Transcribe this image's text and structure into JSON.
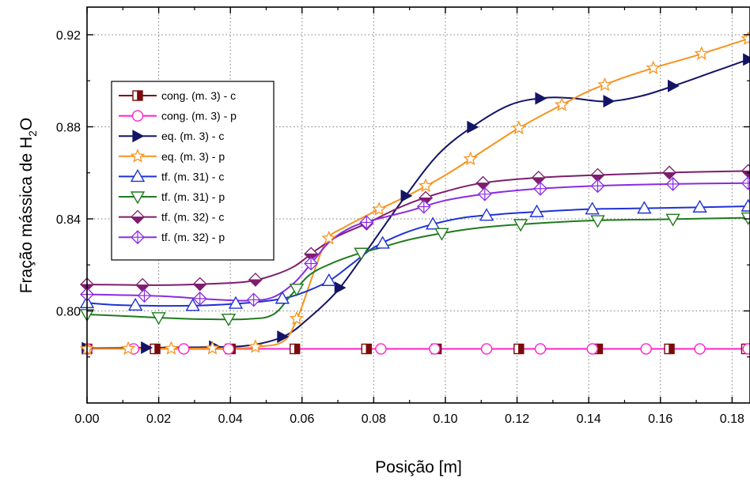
{
  "chart_data": {
    "type": "line",
    "title": "",
    "xlabel": "Posição [m]",
    "ylabel": {
      "prefix": "Fração mássica de H",
      "sub": "2",
      "suffix": "O"
    },
    "xlim": [
      0,
      0.185
    ],
    "ylim": [
      0.76,
      0.932
    ],
    "xticks": [
      0.0,
      0.02,
      0.04,
      0.06,
      0.08,
      0.1,
      0.12,
      0.14,
      0.16,
      0.18
    ],
    "xtick_labels": [
      "0.00",
      "0.02",
      "0.04",
      "0.06",
      "0.08",
      "0.10",
      "0.12",
      "0.14",
      "0.16",
      "0.18"
    ],
    "yticks": [
      0.8,
      0.84,
      0.88,
      0.92
    ],
    "ytick_labels": [
      "0.80",
      "0.84",
      "0.88",
      "0.92"
    ],
    "grid": true,
    "legend_position": "left",
    "series": [
      {
        "name": "cong. (m. 3) - c",
        "color": "#7b0a0a",
        "marker": "half-square",
        "x": [
          0,
          0.02,
          0.04,
          0.06,
          0.08,
          0.1,
          0.12,
          0.14,
          0.16,
          0.185
        ],
        "y": [
          0.7835,
          0.7835,
          0.7835,
          0.7835,
          0.7835,
          0.7835,
          0.7835,
          0.7835,
          0.7835,
          0.7835
        ],
        "markers_x": [
          0.0,
          0.019,
          0.04,
          0.058,
          0.078,
          0.0975,
          0.1205,
          0.1425,
          0.1625,
          0.184
        ]
      },
      {
        "name": "cong. (m. 3) - p",
        "color": "#ff22cc",
        "marker": "circle",
        "x": [
          0,
          0.02,
          0.04,
          0.06,
          0.08,
          0.1,
          0.12,
          0.14,
          0.16,
          0.185
        ],
        "y": [
          0.7835,
          0.7835,
          0.7835,
          0.7835,
          0.7835,
          0.7835,
          0.7835,
          0.7835,
          0.7835,
          0.7835
        ],
        "markers_x": [
          0.0,
          0.013,
          0.027,
          0.0395,
          0.082,
          0.097,
          0.1115,
          0.1265,
          0.141,
          0.156,
          0.171,
          0.1845
        ]
      },
      {
        "name": "eq. (m. 3) - c",
        "color": "#141466",
        "marker": "triangle-right",
        "x": [
          0,
          0.03,
          0.045,
          0.055,
          0.062,
          0.07,
          0.078,
          0.088,
          0.098,
          0.108,
          0.118,
          0.127,
          0.135,
          0.145,
          0.155,
          0.165,
          0.175,
          0.185
        ],
        "y": [
          0.7838,
          0.7842,
          0.785,
          0.789,
          0.797,
          0.809,
          0.826,
          0.848,
          0.868,
          0.8805,
          0.8895,
          0.8925,
          0.8925,
          0.891,
          0.8935,
          0.8985,
          0.904,
          0.9095
        ],
        "markers_x": [
          0.0,
          0.0165,
          0.0355,
          0.0545,
          0.0705,
          0.089,
          0.1075,
          0.1265,
          0.1455,
          0.1635,
          0.1845
        ]
      },
      {
        "name": "eq. (m. 3) - p",
        "color": "#f7931e",
        "marker": "star",
        "x": [
          0,
          0.04,
          0.048,
          0.055,
          0.059,
          0.063,
          0.067,
          0.072,
          0.08,
          0.09,
          0.1,
          0.11,
          0.12,
          0.13,
          0.14,
          0.15,
          0.16,
          0.17,
          0.185
        ],
        "y": [
          0.7835,
          0.7838,
          0.7845,
          0.787,
          0.798,
          0.8155,
          0.831,
          0.8365,
          0.843,
          0.8505,
          0.859,
          0.869,
          0.879,
          0.8875,
          0.8955,
          0.9015,
          0.9065,
          0.911,
          0.9185
        ],
        "markers_x": [
          0.0,
          0.0115,
          0.0235,
          0.035,
          0.047,
          0.0585,
          0.0675,
          0.0815,
          0.0945,
          0.107,
          0.1205,
          0.1325,
          0.1445,
          0.158,
          0.1715,
          0.1845
        ]
      },
      {
        "name": "tf. (m. 31) - c",
        "color": "#1f32d6",
        "marker": "triangle-up",
        "x": [
          0,
          0.01,
          0.03,
          0.045,
          0.055,
          0.062,
          0.068,
          0.074,
          0.08,
          0.088,
          0.096,
          0.105,
          0.115,
          0.125,
          0.14,
          0.16,
          0.185
        ],
        "y": [
          0.8035,
          0.8025,
          0.8023,
          0.8035,
          0.8055,
          0.809,
          0.8135,
          0.8205,
          0.8275,
          0.8335,
          0.8375,
          0.8405,
          0.842,
          0.843,
          0.8442,
          0.8447,
          0.8455
        ],
        "markers_x": [
          0.0,
          0.0135,
          0.0295,
          0.0415,
          0.0545,
          0.0675,
          0.0825,
          0.0965,
          0.1115,
          0.1255,
          0.141,
          0.1555,
          0.171,
          0.1845
        ]
      },
      {
        "name": "tf. (m. 31) - p",
        "color": "#1f7a1f",
        "marker": "triangle-down",
        "x": [
          0,
          0.01,
          0.03,
          0.045,
          0.052,
          0.057,
          0.062,
          0.068,
          0.075,
          0.082,
          0.09,
          0.1,
          0.11,
          0.12,
          0.14,
          0.16,
          0.185
        ],
        "y": [
          0.7985,
          0.7978,
          0.7965,
          0.7965,
          0.7985,
          0.807,
          0.8155,
          0.8205,
          0.8245,
          0.8275,
          0.831,
          0.834,
          0.8362,
          0.8375,
          0.8392,
          0.8398,
          0.8405
        ],
        "markers_x": [
          0.0,
          0.02,
          0.0395,
          0.0585,
          0.0765,
          0.099,
          0.121,
          0.1425,
          0.1635,
          0.1845
        ]
      },
      {
        "name": "tf. (m. 32) - c",
        "color": "#7d1d6e",
        "marker": "diamond",
        "x": [
          0,
          0.02,
          0.035,
          0.045,
          0.052,
          0.058,
          0.064,
          0.07,
          0.078,
          0.088,
          0.098,
          0.11,
          0.125,
          0.145,
          0.165,
          0.185
        ],
        "y": [
          0.8115,
          0.8112,
          0.8118,
          0.8128,
          0.8155,
          0.8195,
          0.8265,
          0.8325,
          0.838,
          0.8455,
          0.851,
          0.8555,
          0.8578,
          0.8592,
          0.8602,
          0.8608
        ],
        "markers_x": [
          0.0,
          0.0155,
          0.0315,
          0.047,
          0.0625,
          0.078,
          0.0945,
          0.1105,
          0.126,
          0.1425,
          0.1625,
          0.1845
        ]
      },
      {
        "name": "tf. (m. 32) - p",
        "color": "#8a2be2",
        "marker": "diamond-cross",
        "x": [
          0,
          0.02,
          0.035,
          0.045,
          0.052,
          0.058,
          0.063,
          0.068,
          0.074,
          0.08,
          0.09,
          0.1,
          0.112,
          0.125,
          0.145,
          0.165,
          0.185
        ],
        "y": [
          0.8072,
          0.8065,
          0.805,
          0.8045,
          0.806,
          0.8125,
          0.8215,
          0.8305,
          0.8365,
          0.8395,
          0.8435,
          0.848,
          0.851,
          0.853,
          0.8545,
          0.8552,
          0.8555
        ],
        "markers_x": [
          0.0,
          0.016,
          0.0315,
          0.0465,
          0.0625,
          0.078,
          0.094,
          0.111,
          0.1265,
          0.1425,
          0.1635,
          0.1845
        ]
      }
    ]
  }
}
